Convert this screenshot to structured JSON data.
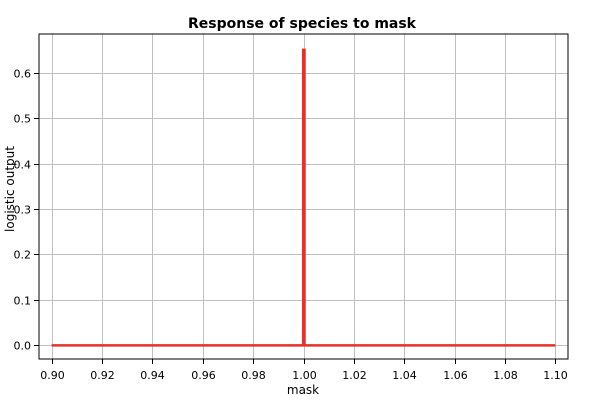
{
  "chart_data": {
    "type": "line",
    "title": "Response of species to mask",
    "xlabel": "mask",
    "ylabel": "logistic output",
    "xlim": [
      0.895,
      1.105
    ],
    "ylim": [
      -0.03,
      0.685
    ],
    "xticks": [
      0.9,
      0.92,
      0.94,
      0.96,
      0.98,
      1.0,
      1.02,
      1.04,
      1.06,
      1.08,
      1.1
    ],
    "xtick_labels": [
      "0.90",
      "0.92",
      "0.94",
      "0.96",
      "0.98",
      "1.00",
      "1.02",
      "1.04",
      "1.06",
      "1.08",
      "1.10"
    ],
    "yticks": [
      0.0,
      0.1,
      0.2,
      0.3,
      0.4,
      0.5,
      0.6
    ],
    "ytick_labels": [
      "0.0",
      "0.1",
      "0.2",
      "0.3",
      "0.4",
      "0.5",
      "0.6"
    ],
    "grid": true,
    "series": [
      {
        "color": "#e8302a",
        "x": [
          0.9,
          0.9999,
          0.9999,
          1.0004,
          1.0004,
          1.1
        ],
        "y": [
          0.0,
          0.0,
          0.65,
          0.65,
          0.0,
          0.0
        ]
      }
    ]
  }
}
